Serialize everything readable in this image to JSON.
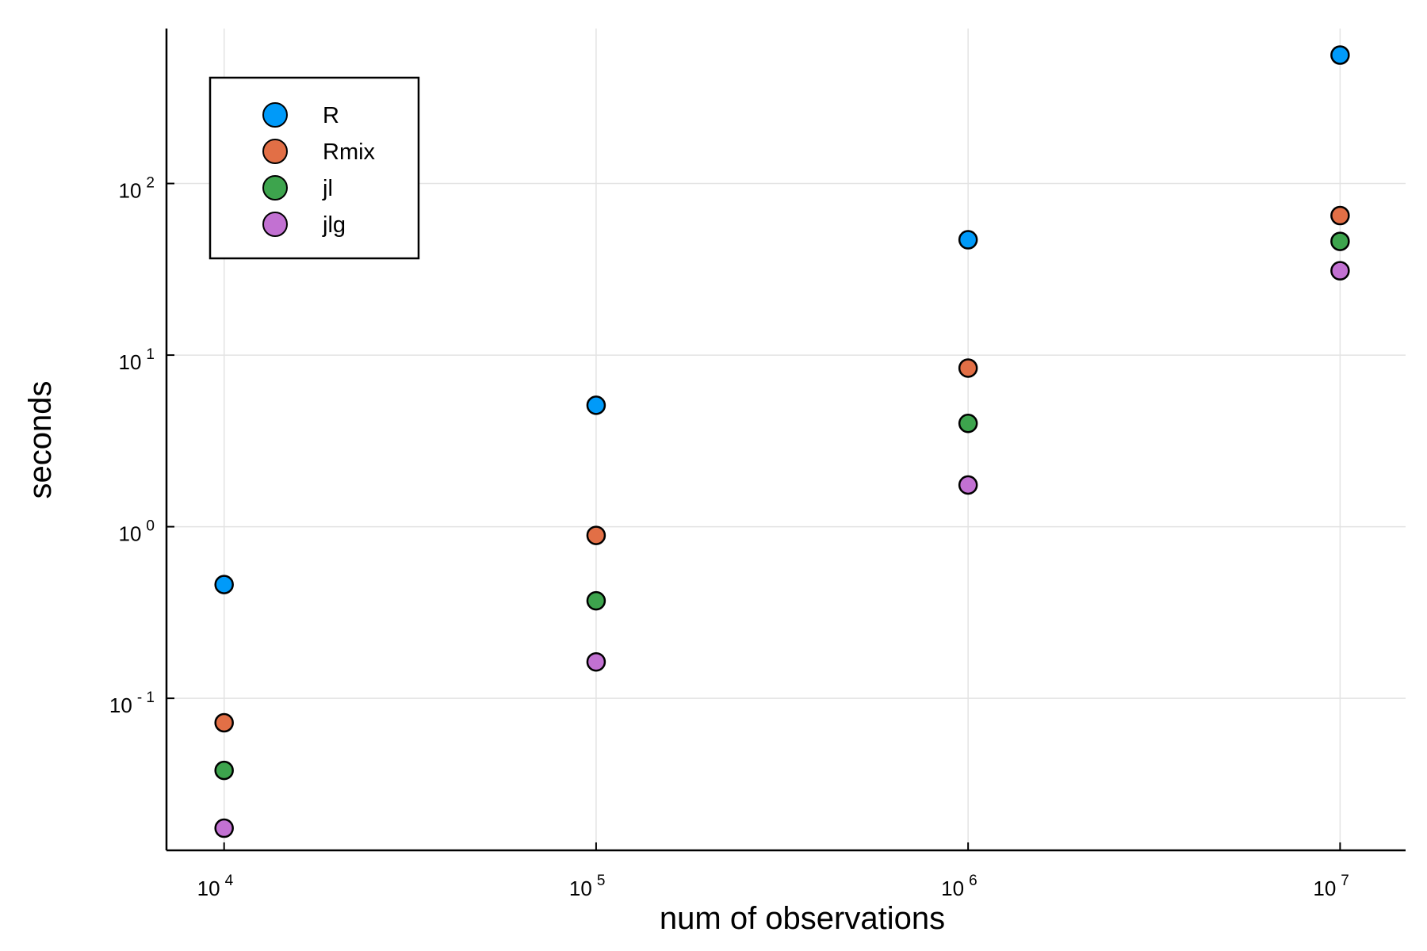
{
  "chart_data": {
    "type": "scatter",
    "xlabel": "num of observations",
    "ylabel": "seconds",
    "xscale": "log",
    "yscale": "log",
    "xlim": [
      7000,
      15000000
    ],
    "ylim": [
      0.013,
      800
    ],
    "grid": true,
    "legend_position": "top-left",
    "x_ticks": [
      {
        "value": 10000,
        "base": "10",
        "exp": "4"
      },
      {
        "value": 100000,
        "base": "10",
        "exp": "5"
      },
      {
        "value": 1000000,
        "base": "10",
        "exp": "6"
      },
      {
        "value": 10000000,
        "base": "10",
        "exp": "7"
      }
    ],
    "y_ticks": [
      {
        "value": 0.1,
        "base": "10",
        "exp": "- 1"
      },
      {
        "value": 1,
        "base": "10",
        "exp": "0"
      },
      {
        "value": 10,
        "base": "10",
        "exp": "1"
      },
      {
        "value": 100,
        "base": "10",
        "exp": "2"
      }
    ],
    "x": [
      10000,
      100000,
      1000000,
      10000000
    ],
    "series": [
      {
        "name": "R",
        "color": "#009af9",
        "values": [
          0.46,
          5.1,
          47,
          560
        ]
      },
      {
        "name": "Rmix",
        "color": "#e26f46",
        "values": [
          0.072,
          0.89,
          8.4,
          65
        ]
      },
      {
        "name": "jl",
        "color": "#3da44d",
        "values": [
          0.038,
          0.37,
          4.0,
          46
        ]
      },
      {
        "name": "jlg",
        "color": "#c271d2",
        "values": [
          0.0175,
          0.163,
          1.75,
          31
        ]
      }
    ]
  }
}
